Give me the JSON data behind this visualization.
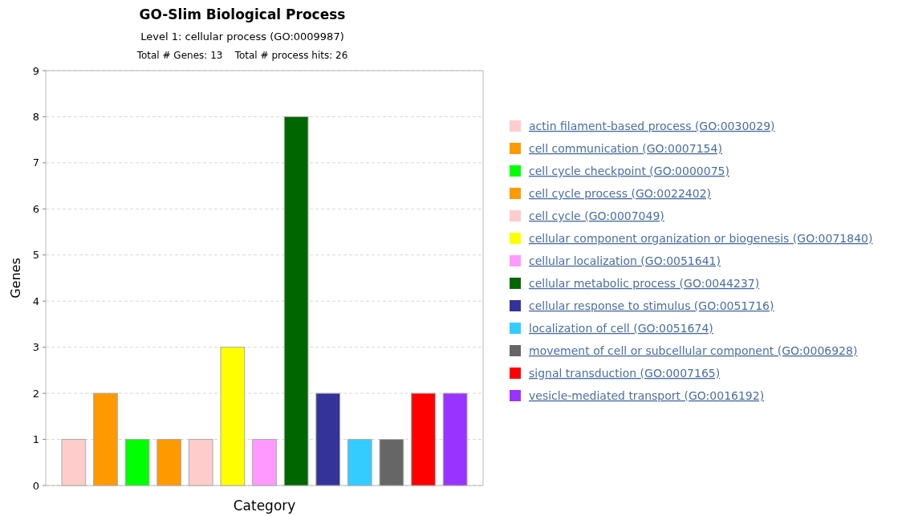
{
  "chart_data": {
    "type": "bar",
    "title": "GO-Slim Biological Process",
    "subtitle": "Level 1: cellular process (GO:0009987)",
    "annotations": [
      "Total # Genes: 13    Total # process hits: 26"
    ],
    "xlabel": "Category",
    "ylabel": "Genes",
    "categories": [
      null,
      null,
      null,
      null,
      null,
      null,
      null,
      null,
      null,
      null,
      null,
      null,
      null
    ],
    "series": [
      {
        "name": "actin filament-based process (GO:0030029)",
        "color": "#ffcccc",
        "values": [
          1,
          null,
          null,
          null,
          null,
          null,
          null,
          null,
          null,
          null,
          null,
          null,
          null
        ]
      },
      {
        "name": "cell communication (GO:0007154)",
        "color": "#ff9900",
        "values": [
          null,
          2,
          null,
          null,
          null,
          null,
          null,
          null,
          null,
          null,
          null,
          null,
          null
        ]
      },
      {
        "name": "cell cycle checkpoint (GO:0000075)",
        "color": "#00ff00",
        "values": [
          null,
          null,
          1,
          null,
          null,
          null,
          null,
          null,
          null,
          null,
          null,
          null,
          null
        ]
      },
      {
        "name": "cell cycle process (GO:0022402)",
        "color": "#ff9900",
        "values": [
          null,
          null,
          null,
          1,
          null,
          null,
          null,
          null,
          null,
          null,
          null,
          null,
          null
        ]
      },
      {
        "name": "cell cycle (GO:0007049)",
        "color": "#ffcccc",
        "values": [
          null,
          null,
          null,
          null,
          1,
          null,
          null,
          null,
          null,
          null,
          null,
          null,
          null
        ]
      },
      {
        "name": "cellular component organization or biogenesis (GO:0071840)",
        "color": "#ffff00",
        "values": [
          null,
          null,
          null,
          null,
          null,
          3,
          null,
          null,
          null,
          null,
          null,
          null,
          null
        ]
      },
      {
        "name": "cellular localization (GO:0051641)",
        "color": "#ff99ff",
        "values": [
          null,
          null,
          null,
          null,
          null,
          null,
          1,
          null,
          null,
          null,
          null,
          null,
          null
        ]
      },
      {
        "name": "cellular metabolic process (GO:0044237)",
        "color": "#006600",
        "values": [
          null,
          null,
          null,
          null,
          null,
          null,
          null,
          8,
          null,
          null,
          null,
          null,
          null
        ]
      },
      {
        "name": "cellular response to stimulus (GO:0051716)",
        "color": "#333399",
        "values": [
          null,
          null,
          null,
          null,
          null,
          null,
          null,
          null,
          2,
          null,
          null,
          null,
          null
        ]
      },
      {
        "name": "localization of cell (GO:0051674)",
        "color": "#33ccff",
        "values": [
          null,
          null,
          null,
          null,
          null,
          null,
          null,
          null,
          null,
          1,
          null,
          null,
          null
        ]
      },
      {
        "name": "movement of cell or subcellular component (GO:0006928)",
        "color": "#666666",
        "values": [
          null,
          null,
          null,
          null,
          null,
          null,
          null,
          null,
          null,
          null,
          1,
          null,
          null
        ]
      },
      {
        "name": "signal transduction (GO:0007165)",
        "color": "#ff0000",
        "values": [
          null,
          null,
          null,
          null,
          null,
          null,
          null,
          null,
          null,
          null,
          null,
          2,
          null
        ]
      },
      {
        "name": "vesicle-mediated transport (GO:0016192)",
        "color": "#9933ff",
        "values": [
          null,
          null,
          null,
          null,
          null,
          null,
          null,
          null,
          null,
          null,
          null,
          null,
          2
        ]
      }
    ],
    "ylim": [
      0,
      9
    ],
    "yticks": [
      0,
      1,
      2,
      3,
      4,
      5,
      6,
      7,
      8,
      9
    ],
    "grid": "y",
    "legend": "right",
    "tick_labels": "y"
  }
}
